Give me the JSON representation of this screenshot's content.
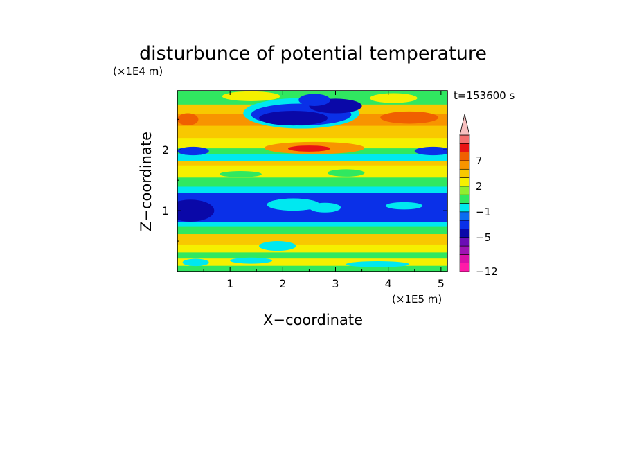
{
  "chart_data": {
    "type": "heatmap",
    "title": "disturbunce of potential temperature",
    "xlabel": "X−coordinate",
    "ylabel": "Z−coordinate",
    "x_unit": "(×1E5 m)",
    "y_unit": "(×1E4 m)",
    "time_label": "t=153600 s",
    "xlim": [
      0,
      5.12
    ],
    "ylim": [
      0,
      2.97
    ],
    "x_ticks": [
      1,
      2,
      3,
      4,
      5
    ],
    "y_ticks": [
      1,
      2
    ],
    "x_tick_labels": [
      "1",
      "2",
      "3",
      "4",
      "5"
    ],
    "y_tick_labels": [
      "1",
      "2"
    ],
    "colorbar": {
      "levels": [
        -12,
        -11,
        -9,
        -7,
        -5,
        -4,
        -3,
        -1,
        0,
        1,
        2,
        3,
        5,
        7,
        8,
        9
      ],
      "colors": [
        "#ff1aa8",
        "#d70fa8",
        "#9e13b3",
        "#6b0db5",
        "#0a08a8",
        "#0a30e8",
        "#0c6cf0",
        "#00e8f0",
        "#30e860",
        "#90ee30",
        "#f5f000",
        "#f8c800",
        "#f89400",
        "#f06000",
        "#e81414",
        "#f46e6e",
        "#f8c0c0"
      ],
      "labels": [
        "7",
        "2",
        "−1",
        "−5",
        "−12"
      ],
      "label_values": [
        7,
        2,
        -1,
        -5,
        -12
      ]
    },
    "bands": [
      {
        "y0": 0.0,
        "y1": 0.1,
        "color": "#30e860"
      },
      {
        "y0": 0.1,
        "y1": 0.22,
        "color": "#f5f000"
      },
      {
        "y0": 0.22,
        "y1": 0.32,
        "color": "#30e860"
      },
      {
        "y0": 0.32,
        "y1": 0.45,
        "color": "#f5f000"
      },
      {
        "y0": 0.45,
        "y1": 0.62,
        "color": "#f8c800"
      },
      {
        "y0": 0.62,
        "y1": 0.75,
        "color": "#30e860"
      },
      {
        "y0": 0.75,
        "y1": 0.82,
        "color": "#00e8f0"
      },
      {
        "y0": 0.82,
        "y1": 1.3,
        "color": "#0a30e8"
      },
      {
        "y0": 1.3,
        "y1": 1.4,
        "color": "#00e8f0"
      },
      {
        "y0": 1.4,
        "y1": 1.55,
        "color": "#30e860"
      },
      {
        "y0": 1.55,
        "y1": 1.75,
        "color": "#f5f000"
      },
      {
        "y0": 1.75,
        "y1": 1.82,
        "color": "#f8c800"
      },
      {
        "y0": 1.82,
        "y1": 1.93,
        "color": "#00e8f0"
      },
      {
        "y0": 1.93,
        "y1": 2.03,
        "color": "#30e860"
      },
      {
        "y0": 2.03,
        "y1": 2.2,
        "color": "#f5f000"
      },
      {
        "y0": 2.2,
        "y1": 2.4,
        "color": "#f8c800"
      },
      {
        "y0": 2.4,
        "y1": 2.6,
        "color": "#f89400"
      },
      {
        "y0": 2.6,
        "y1": 2.75,
        "color": "#f8c800"
      },
      {
        "y0": 2.75,
        "y1": 2.97,
        "color": "#30e860"
      }
    ],
    "features": [
      {
        "x": 0.35,
        "y": 0.15,
        "rx": 0.25,
        "ry": 0.06,
        "color": "#00e8f0"
      },
      {
        "x": 1.4,
        "y": 0.18,
        "rx": 0.4,
        "ry": 0.05,
        "color": "#00e8f0"
      },
      {
        "x": 3.8,
        "y": 0.12,
        "rx": 0.6,
        "ry": 0.05,
        "color": "#00e8f0"
      },
      {
        "x": 1.9,
        "y": 0.42,
        "rx": 0.35,
        "ry": 0.08,
        "color": "#00e8f0"
      },
      {
        "x": 0.25,
        "y": 1.0,
        "rx": 0.45,
        "ry": 0.18,
        "color": "#0a08a8"
      },
      {
        "x": 2.2,
        "y": 1.1,
        "rx": 0.5,
        "ry": 0.1,
        "color": "#00e8f0"
      },
      {
        "x": 2.8,
        "y": 1.05,
        "rx": 0.3,
        "ry": 0.08,
        "color": "#00e8f0"
      },
      {
        "x": 4.3,
        "y": 1.08,
        "rx": 0.35,
        "ry": 0.06,
        "color": "#00e8f0"
      },
      {
        "x": 1.2,
        "y": 1.6,
        "rx": 0.4,
        "ry": 0.05,
        "color": "#30e860"
      },
      {
        "x": 3.2,
        "y": 1.62,
        "rx": 0.35,
        "ry": 0.06,
        "color": "#30e860"
      },
      {
        "x": 0.3,
        "y": 1.98,
        "rx": 0.3,
        "ry": 0.07,
        "color": "#0a30e8"
      },
      {
        "x": 4.85,
        "y": 1.98,
        "rx": 0.35,
        "ry": 0.07,
        "color": "#0a30e8"
      },
      {
        "x": 2.6,
        "y": 2.03,
        "rx": 0.95,
        "ry": 0.1,
        "color": "#f89400"
      },
      {
        "x": 2.5,
        "y": 2.02,
        "rx": 0.4,
        "ry": 0.05,
        "color": "#e81414"
      },
      {
        "x": 0.2,
        "y": 2.5,
        "rx": 0.2,
        "ry": 0.1,
        "color": "#f06000"
      },
      {
        "x": 4.4,
        "y": 2.53,
        "rx": 0.55,
        "ry": 0.1,
        "color": "#f06000"
      },
      {
        "x": 2.35,
        "y": 2.6,
        "rx": 1.1,
        "ry": 0.25,
        "color": "#00e8f0"
      },
      {
        "x": 2.35,
        "y": 2.58,
        "rx": 0.95,
        "ry": 0.18,
        "color": "#0a30e8"
      },
      {
        "x": 2.2,
        "y": 2.52,
        "rx": 0.65,
        "ry": 0.12,
        "color": "#0a08a8"
      },
      {
        "x": 3.0,
        "y": 2.72,
        "rx": 0.5,
        "ry": 0.12,
        "color": "#0a08a8"
      },
      {
        "x": 2.6,
        "y": 2.82,
        "rx": 0.3,
        "ry": 0.1,
        "color": "#0a30e8"
      },
      {
        "x": 1.4,
        "y": 2.88,
        "rx": 0.55,
        "ry": 0.08,
        "color": "#f5f000"
      },
      {
        "x": 4.1,
        "y": 2.85,
        "rx": 0.45,
        "ry": 0.08,
        "color": "#f5f000"
      }
    ]
  }
}
